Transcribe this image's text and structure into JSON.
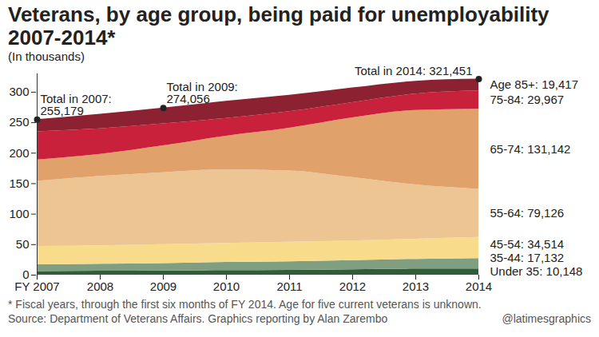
{
  "chart_data": {
    "type": "area",
    "stacked": true,
    "grid": false,
    "title": "Veterans, by age group, being paid for unemployability 2007-2014*",
    "subtitle": "(In thousands)",
    "footnote": "* Fiscal years, through the first six months of FY 2014. Age for five current veterans is unknown.",
    "source": "Source: Department of Veterans Affairs. Graphics reporting by Alan Zarembo",
    "credit": "@latimesgraphics",
    "categories": [
      "FY 2007",
      "2008",
      "2009",
      "2010",
      "2011",
      "2012",
      "2013",
      "2014"
    ],
    "ylim": [
      0,
      330
    ],
    "yticks": [
      0,
      50,
      100,
      150,
      200,
      250,
      300
    ],
    "series": [
      {
        "name": "Under 35",
        "color": "#2f5d37",
        "values": [
          6,
          6.5,
          7,
          7.5,
          8,
          9,
          10,
          10.148
        ]
      },
      {
        "name": "35-44",
        "color": "#7f9f80",
        "values": [
          11,
          11.5,
          12,
          13.5,
          14,
          15,
          16,
          17.132
        ]
      },
      {
        "name": "45-54",
        "color": "#f9dc8b",
        "values": [
          30,
          30,
          31,
          31,
          32,
          32,
          33,
          34.514
        ]
      },
      {
        "name": "55-64",
        "color": "#ecc593",
        "values": [
          107,
          114,
          118,
          121,
          117,
          104,
          89,
          79.126
        ]
      },
      {
        "name": "65-74",
        "color": "#e1a16b",
        "values": [
          35,
          36,
          44,
          55,
          70,
          98,
          122,
          131.142
        ]
      },
      {
        "name": "75-84",
        "color": "#c9203b",
        "values": [
          46,
          42,
          36,
          29,
          27,
          25,
          27,
          29.967
        ]
      },
      {
        "name": "Age 85+",
        "color": "#8b2131",
        "values": [
          20.179,
          24,
          26.056,
          28,
          27,
          24,
          21,
          19.417
        ]
      }
    ],
    "annotations": [
      {
        "text": "Total in 2007: 255,179",
        "x": "FY 2007",
        "y": 255.179
      },
      {
        "text": "Total in 2009: 274,056",
        "x": "2009",
        "y": 274.056
      },
      {
        "text": "Total in 2014: 321,451",
        "x": "2014",
        "y": 321.451
      },
      {
        "text": "Age 85+: 19,417",
        "series": "Age 85+"
      },
      {
        "text": "75-84: 29,967",
        "series": "75-84"
      },
      {
        "text": "65-74: 131,142",
        "series": "65-74"
      },
      {
        "text": "55-64: 79,126",
        "series": "55-64"
      },
      {
        "text": "45-54: 34,514",
        "series": "45-54"
      },
      {
        "text": "35-44: 17,132",
        "series": "35-44"
      },
      {
        "text": "Under 35: 10,148",
        "series": "Under 35"
      }
    ]
  }
}
